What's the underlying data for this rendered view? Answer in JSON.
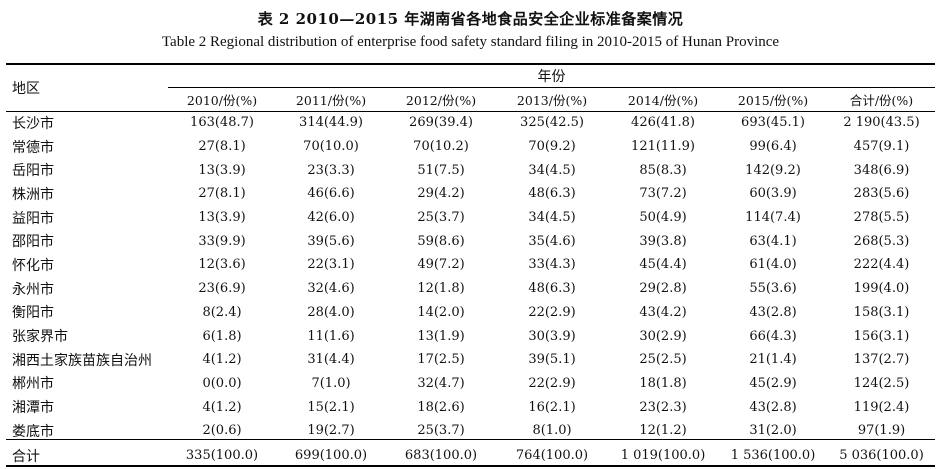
{
  "caption": {
    "cn": "表 2   2010—2015 年湖南省各地食品安全企业标准备案情况",
    "en": "Table 2    Regional distribution of enterprise food safety standard filing in 2010-2015 of Hunan Province"
  },
  "header": {
    "region": "地区",
    "group": "年份",
    "columns": [
      "2010/份(%)",
      "2011/份(%)",
      "2012/份(%)",
      "2013/份(%)",
      "2014/份(%)",
      "2015/份(%)",
      "合计/份(%)"
    ]
  },
  "rows": [
    {
      "region": "长沙市",
      "cells": [
        "163(48.7)",
        "314(44.9)",
        "269(39.4)",
        "325(42.5)",
        "426(41.8)",
        "693(45.1)",
        "2 190(43.5)"
      ]
    },
    {
      "region": "常德市",
      "cells": [
        "27(8.1)",
        "70(10.0)",
        "70(10.2)",
        "70(9.2)",
        "121(11.9)",
        "99(6.4)",
        "457(9.1)"
      ]
    },
    {
      "region": "岳阳市",
      "cells": [
        "13(3.9)",
        "23(3.3)",
        "51(7.5)",
        "34(4.5)",
        "85(8.3)",
        "142(9.2)",
        "348(6.9)"
      ]
    },
    {
      "region": "株洲市",
      "cells": [
        "27(8.1)",
        "46(6.6)",
        "29(4.2)",
        "48(6.3)",
        "73(7.2)",
        "60(3.9)",
        "283(5.6)"
      ]
    },
    {
      "region": "益阳市",
      "cells": [
        "13(3.9)",
        "42(6.0)",
        "25(3.7)",
        "34(4.5)",
        "50(4.9)",
        "114(7.4)",
        "278(5.5)"
      ]
    },
    {
      "region": "邵阳市",
      "cells": [
        "33(9.9)",
        "39(5.6)",
        "59(8.6)",
        "35(4.6)",
        "39(3.8)",
        "63(4.1)",
        "268(5.3)"
      ]
    },
    {
      "region": "怀化市",
      "cells": [
        "12(3.6)",
        "22(3.1)",
        "49(7.2)",
        "33(4.3)",
        "45(4.4)",
        "61(4.0)",
        "222(4.4)"
      ]
    },
    {
      "region": "永州市",
      "cells": [
        "23(6.9)",
        "32(4.6)",
        "12(1.8)",
        "48(6.3)",
        "29(2.8)",
        "55(3.6)",
        "199(4.0)"
      ]
    },
    {
      "region": "衡阳市",
      "cells": [
        "8(2.4)",
        "28(4.0)",
        "14(2.0)",
        "22(2.9)",
        "43(4.2)",
        "43(2.8)",
        "158(3.1)"
      ]
    },
    {
      "region": "张家界市",
      "cells": [
        "6(1.8)",
        "11(1.6)",
        "13(1.9)",
        "30(3.9)",
        "30(2.9)",
        "66(4.3)",
        "156(3.1)"
      ]
    },
    {
      "region": "湘西土家族苗族自治州",
      "cells": [
        "4(1.2)",
        "31(4.4)",
        "17(2.5)",
        "39(5.1)",
        "25(2.5)",
        "21(1.4)",
        "137(2.7)"
      ]
    },
    {
      "region": "郴州市",
      "cells": [
        "0(0.0)",
        "7(1.0)",
        "32(4.7)",
        "22(2.9)",
        "18(1.8)",
        "45(2.9)",
        "124(2.5)"
      ]
    },
    {
      "region": "湘潭市",
      "cells": [
        "4(1.2)",
        "15(2.1)",
        "18(2.6)",
        "16(2.1)",
        "23(2.3)",
        "43(2.8)",
        "119(2.4)"
      ]
    },
    {
      "region": "娄底市",
      "cells": [
        "2(0.6)",
        "19(2.7)",
        "25(3.7)",
        "8(1.0)",
        "12(1.2)",
        "31(2.0)",
        "97(1.9)"
      ]
    }
  ],
  "total": {
    "region": "合计",
    "cells": [
      "335(100.0)",
      "699(100.0)",
      "683(100.0)",
      "764(100.0)",
      "1 019(100.0)",
      "1 536(100.0)",
      "5 036(100.0)"
    ]
  }
}
